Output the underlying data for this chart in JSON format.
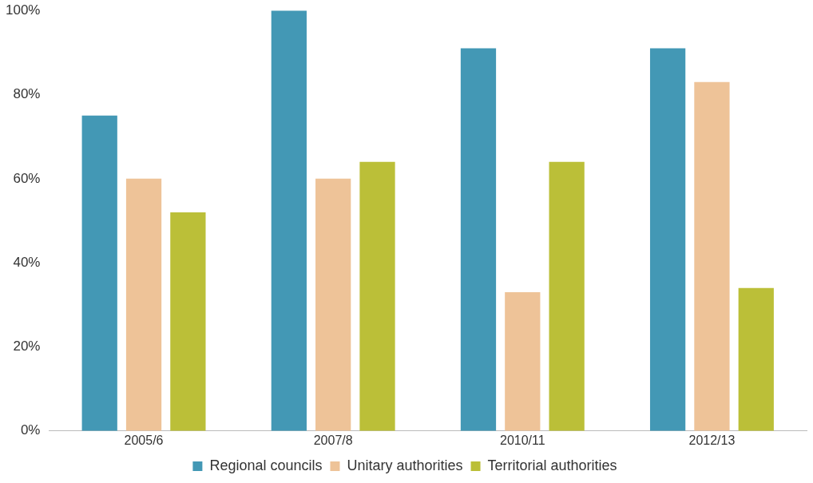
{
  "chart_data": {
    "type": "bar",
    "categories": [
      "2005/6",
      "2007/8",
      "2010/11",
      "2012/13"
    ],
    "series": [
      {
        "name": "Regional councils",
        "color": "#4398b5",
        "values": [
          75,
          100,
          91,
          91
        ]
      },
      {
        "name": "Unitary authorities",
        "color": "#eec398",
        "values": [
          60,
          60,
          33,
          83
        ]
      },
      {
        "name": "Territorial authorities",
        "color": "#bbbf38",
        "values": [
          52,
          64,
          64,
          34
        ]
      }
    ],
    "ylim": [
      0,
      100
    ],
    "yticks": [
      {
        "value": 0,
        "label": "0%"
      },
      {
        "value": 20,
        "label": "20%"
      },
      {
        "value": 40,
        "label": "40%"
      },
      {
        "value": 60,
        "label": "60%"
      },
      {
        "value": 80,
        "label": "80%"
      },
      {
        "value": 100,
        "label": "100%"
      }
    ],
    "grid": false,
    "legend": "bottom"
  }
}
